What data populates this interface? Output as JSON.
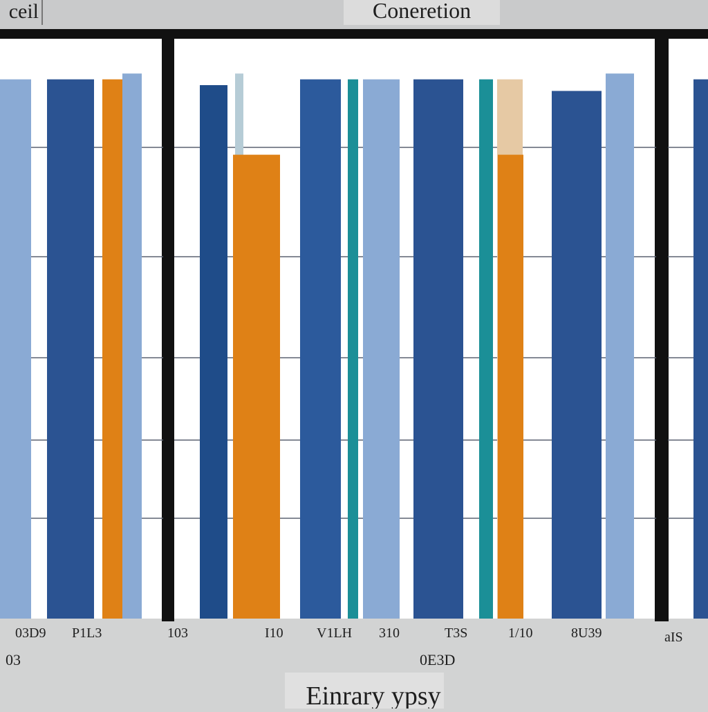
{
  "header": {
    "left_title": "ceil",
    "center_title": "Coneretion"
  },
  "chart_data": {
    "type": "bar",
    "title": "Coneretion",
    "xlabel": "Einrary ypsy",
    "ylabel": "",
    "ylim": [
      0,
      100
    ],
    "grid": true,
    "panels": [
      {
        "name": "left-panel",
        "bars": [
          {
            "value": 93,
            "color": "#8aaad4"
          },
          {
            "value": 93,
            "color": "#2b5392"
          },
          {
            "value": 93,
            "color": "#df8116"
          },
          {
            "value": 94,
            "color": "#8aaad4"
          }
        ],
        "tick_labels": [
          "03D9",
          "P1L3",
          "103"
        ],
        "sub_labels": [
          "03"
        ]
      },
      {
        "name": "middle-panel",
        "bars": [
          {
            "value": 92,
            "color": "#1f4c89"
          },
          {
            "value": 94,
            "color": "#b6ccd6"
          },
          {
            "value": 80,
            "color": "#df8116"
          },
          {
            "value": 93,
            "color": "#2c5a9c"
          },
          {
            "value": 93,
            "color": "#1b8f97"
          },
          {
            "value": 93,
            "color": "#8aaad4"
          },
          {
            "value": 93,
            "color": "#2b5392"
          },
          {
            "value": 93,
            "color": "#1b8f97"
          },
          {
            "value": 93,
            "color": "#e6c9a4"
          },
          {
            "value": 80,
            "color": "#df8116"
          },
          {
            "value": 91,
            "color": "#2b5392"
          },
          {
            "value": 94,
            "color": "#8aaad4"
          }
        ],
        "tick_labels": [
          "I10",
          "V1LH",
          "310",
          "T3S",
          "1/10",
          "8U39"
        ],
        "sub_labels": [
          "0E3D"
        ]
      },
      {
        "name": "right-panel",
        "bars": [
          {
            "value": 93,
            "color": "#2b5392"
          }
        ],
        "tick_labels": [
          "aIS"
        ],
        "sub_labels": []
      }
    ]
  }
}
